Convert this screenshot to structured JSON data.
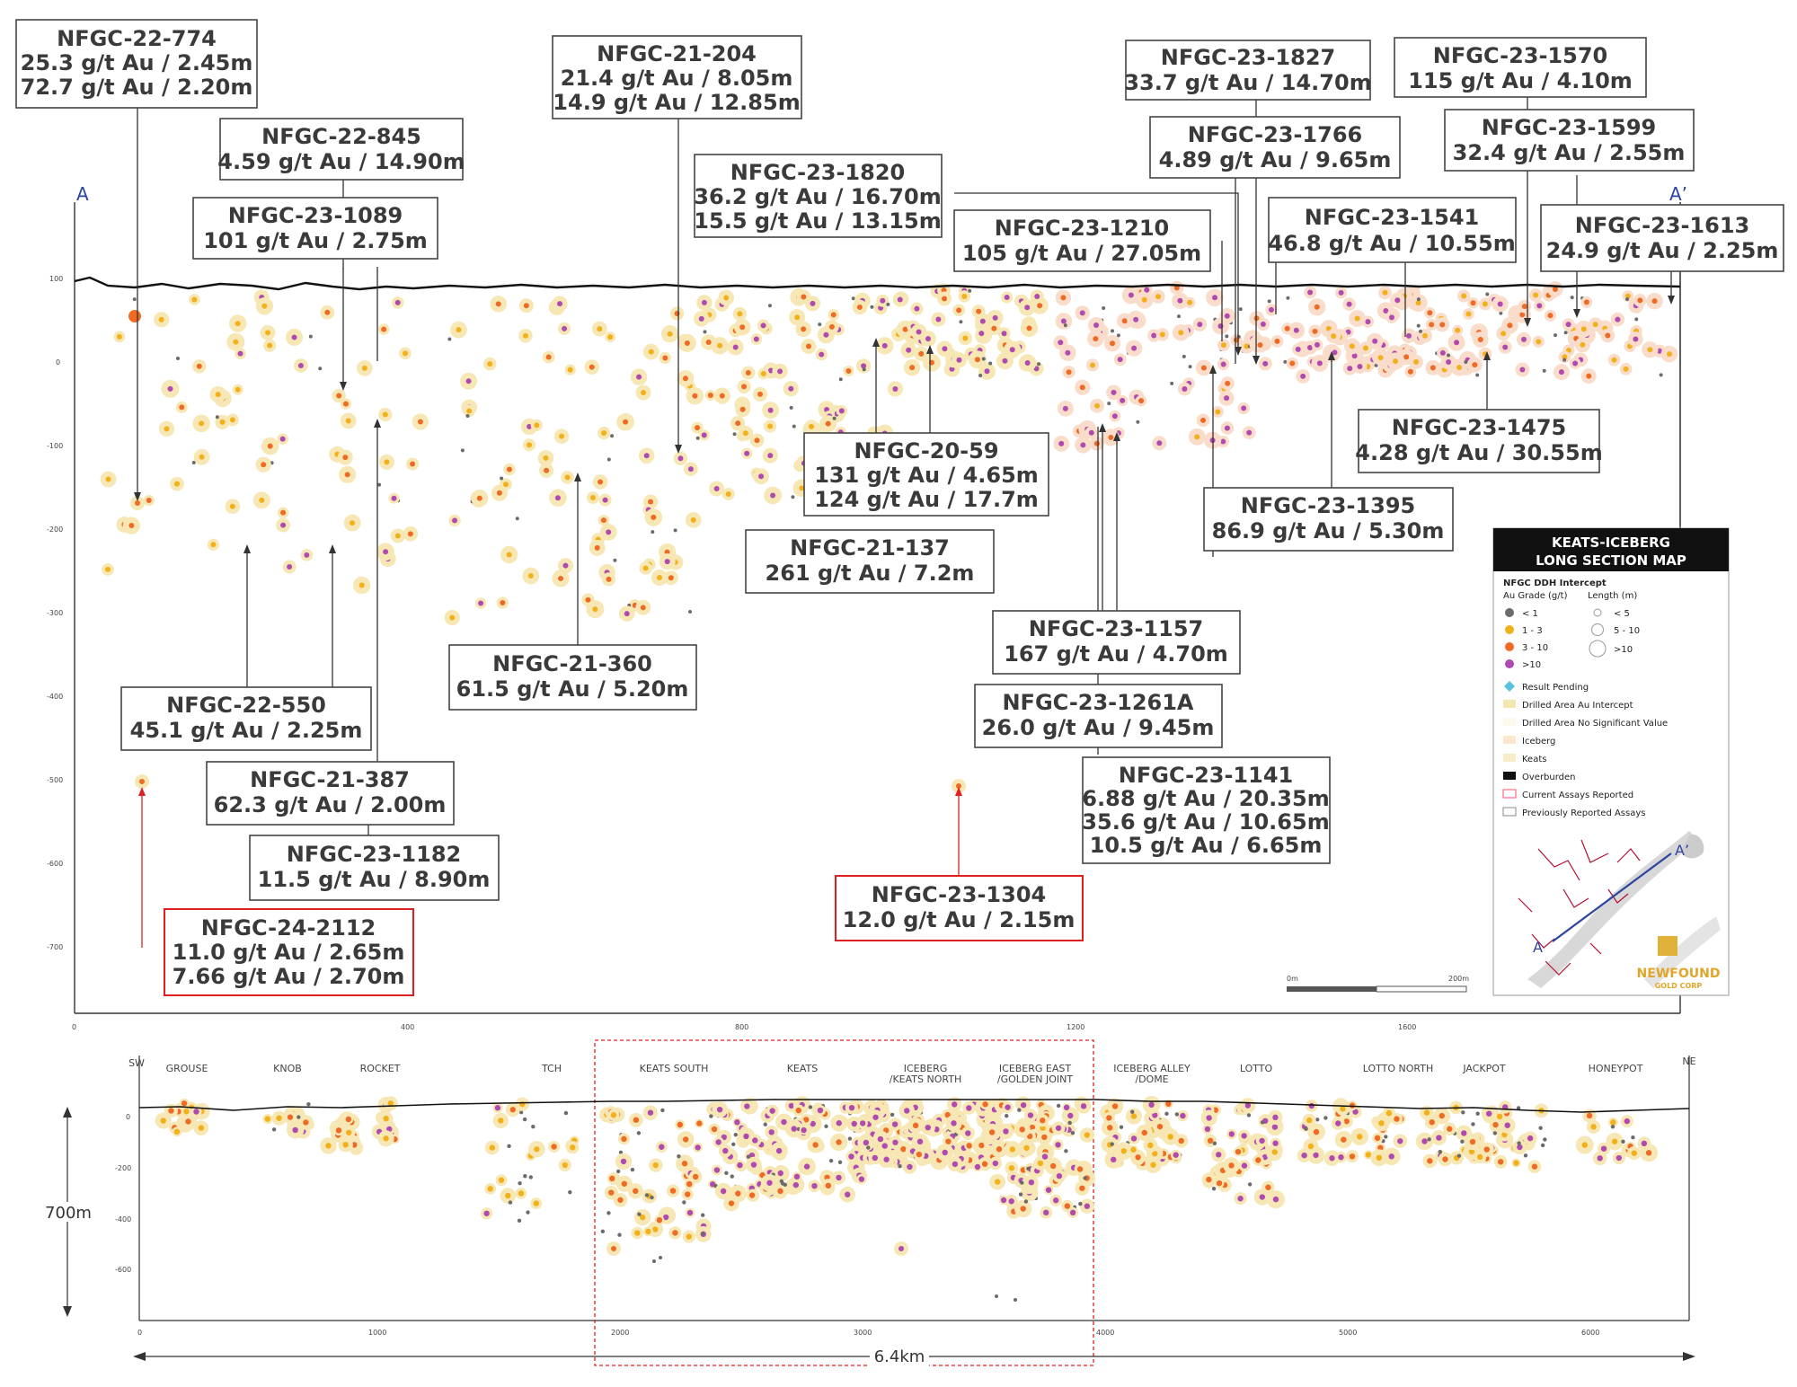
{
  "section_labels": {
    "a": "A",
    "a_prime": "A’"
  },
  "callouts": [
    {
      "id": "c774",
      "hole": "NFGC-22-774",
      "values": [
        "25.3 g/t Au / 2.45m",
        "72.7 g/t Au / 2.20m"
      ]
    },
    {
      "id": "c845",
      "hole": "NFGC-22-845",
      "values": [
        "4.59 g/t Au / 14.90m"
      ]
    },
    {
      "id": "c1089",
      "hole": "NFGC-23-1089",
      "values": [
        "101 g/t Au / 2.75m"
      ]
    },
    {
      "id": "c204",
      "hole": "NFGC-21-204",
      "values": [
        "21.4 g/t Au / 8.05m",
        "14.9 g/t Au / 12.85m"
      ]
    },
    {
      "id": "c1820",
      "hole": "NFGC-23-1820",
      "values": [
        "36.2 g/t Au / 16.70m",
        "15.5 g/t Au / 13.15m"
      ]
    },
    {
      "id": "c1827",
      "hole": "NFGC-23-1827",
      "values": [
        "33.7 g/t Au / 14.70m"
      ]
    },
    {
      "id": "c1570",
      "hole": "NFGC-23-1570",
      "values": [
        "115 g/t Au / 4.10m"
      ]
    },
    {
      "id": "c1766",
      "hole": "NFGC-23-1766",
      "values": [
        "4.89 g/t Au / 9.65m"
      ]
    },
    {
      "id": "c1599",
      "hole": "NFGC-23-1599",
      "values": [
        "32.4 g/t Au / 2.55m"
      ]
    },
    {
      "id": "c1210",
      "hole": "NFGC-23-1210",
      "values": [
        "105 g/t Au / 27.05m"
      ]
    },
    {
      "id": "c1541",
      "hole": "NFGC-23-1541",
      "values": [
        "46.8 g/t Au / 10.55m"
      ]
    },
    {
      "id": "c1613",
      "hole": "NFGC-23-1613",
      "values": [
        "24.9 g/t Au / 2.25m"
      ]
    },
    {
      "id": "c59",
      "hole": "NFGC-20-59",
      "values": [
        "131 g/t Au / 4.65m",
        "124 g/t Au / 17.7m"
      ]
    },
    {
      "id": "c1475",
      "hole": "NFGC-23-1475",
      "values": [
        "4.28 g/t Au / 30.55m"
      ]
    },
    {
      "id": "c1395",
      "hole": "NFGC-23-1395",
      "values": [
        "86.9 g/t Au / 5.30m"
      ]
    },
    {
      "id": "c137",
      "hole": "NFGC-21-137",
      "values": [
        "261 g/t Au / 7.2m"
      ]
    },
    {
      "id": "c360",
      "hole": "NFGC-21-360",
      "values": [
        "61.5 g/t Au / 5.20m"
      ]
    },
    {
      "id": "c1157",
      "hole": "NFGC-23-1157",
      "values": [
        "167 g/t  Au / 4.70m"
      ]
    },
    {
      "id": "c1261",
      "hole": "NFGC-23-1261A",
      "values": [
        "26.0 g/t Au / 9.45m"
      ]
    },
    {
      "id": "c1141",
      "hole": "NFGC-23-1141",
      "values": [
        "6.88 g/t Au / 20.35m",
        "35.6 g/t Au / 10.65m",
        "10.5 g/t Au / 6.65m"
      ]
    },
    {
      "id": "c550",
      "hole": "NFGC-22-550",
      "values": [
        "45.1 g/t Au / 2.25m"
      ]
    },
    {
      "id": "c387",
      "hole": "NFGC-21-387",
      "values": [
        "62.3 g/t Au / 2.00m"
      ]
    },
    {
      "id": "c1182",
      "hole": "NFGC-23-1182",
      "values": [
        "11.5 g/t Au / 8.90m"
      ]
    },
    {
      "id": "c1304",
      "hole": "NFGC-23-1304",
      "values": [
        "12.0 g/t Au / 2.15m"
      ],
      "current": true
    },
    {
      "id": "c2112",
      "hole": "NFGC-24-2112",
      "values": [
        "11.0 g/t Au / 2.65m",
        "7.66 g/t Au / 2.70m"
      ],
      "current": true
    }
  ],
  "upper_section": {
    "elev_ticks": [
      "100",
      "0",
      "-100",
      "-200",
      "-300",
      "-400",
      "-500",
      "-600",
      "-700"
    ],
    "dist_ticks": [
      "0",
      "400",
      "800",
      "1200",
      "1600"
    ],
    "scale_bar": {
      "start": "0m",
      "end": "200m"
    }
  },
  "legend": {
    "title": [
      "KEATS-ICEBERG",
      "LONG SECTION MAP"
    ],
    "subtitle": "NFGC DDH Intercept",
    "grade_header": "Au Grade (g/t)",
    "length_header": "Length (m)",
    "grades": [
      {
        "label": "< 1",
        "color": "#6b6b6b"
      },
      {
        "label": "1 - 3",
        "color": "#f2b11b"
      },
      {
        "label": "3 - 10",
        "color": "#ee6a25"
      },
      {
        "label": ">10",
        "color": "#b04ab0"
      }
    ],
    "lengths": [
      "< 5",
      "5 - 10",
      ">10"
    ],
    "items": [
      {
        "label": "Result Pending",
        "color": "#5bc0de"
      },
      {
        "label": "Drilled Area Au Intercept",
        "color": "#f4e6b0"
      },
      {
        "label": "Drilled Area No Significant Value",
        "color": "#fdf9ec"
      },
      {
        "label": "Iceberg",
        "color": "#fbe7cc"
      },
      {
        "label": "Keats",
        "color": "#f7ecc7"
      },
      {
        "label": "Overburden",
        "color": "#111111"
      },
      {
        "label": "Current Assays Reported",
        "color": "#ff4d6d"
      },
      {
        "label": "Previously Reported Assays",
        "color": "#888888"
      }
    ],
    "map_labels": {
      "a": "A",
      "a_prime": "A’"
    },
    "logo": {
      "name": "NEWFOUND",
      "sub": "GOLD CORP"
    }
  },
  "lower_section": {
    "ends": {
      "sw": "SW",
      "ne": "NE"
    },
    "zones": [
      "GROUSE",
      "KNOB",
      "ROCKET",
      "TCH",
      "KEATS SOUTH",
      "KEATS",
      "ICEBERG",
      "/KEATS NORTH",
      "ICEBERG EAST",
      "/GOLDEN JOINT",
      "ICEBERG ALLEY",
      "/DOME",
      "LOTTO",
      "LOTTO NORTH",
      "JACKPOT",
      "HONEYPOT"
    ],
    "elev_ticks": [
      "0",
      "-200",
      "-400",
      "-600"
    ],
    "dist_ticks": [
      "0",
      "1000",
      "2000",
      "3000",
      "4000",
      "5000",
      "6000"
    ],
    "depth_label": "700m",
    "length_label": "6.4km"
  },
  "colors": {
    "low": "#6b6b6b",
    "mid": "#f2b11b",
    "high": "#ee6a25",
    "vhigh": "#b04ab0",
    "halo": "#f6e7b4",
    "halo_ice": "#f9dcc9",
    "current": "#e02020"
  }
}
